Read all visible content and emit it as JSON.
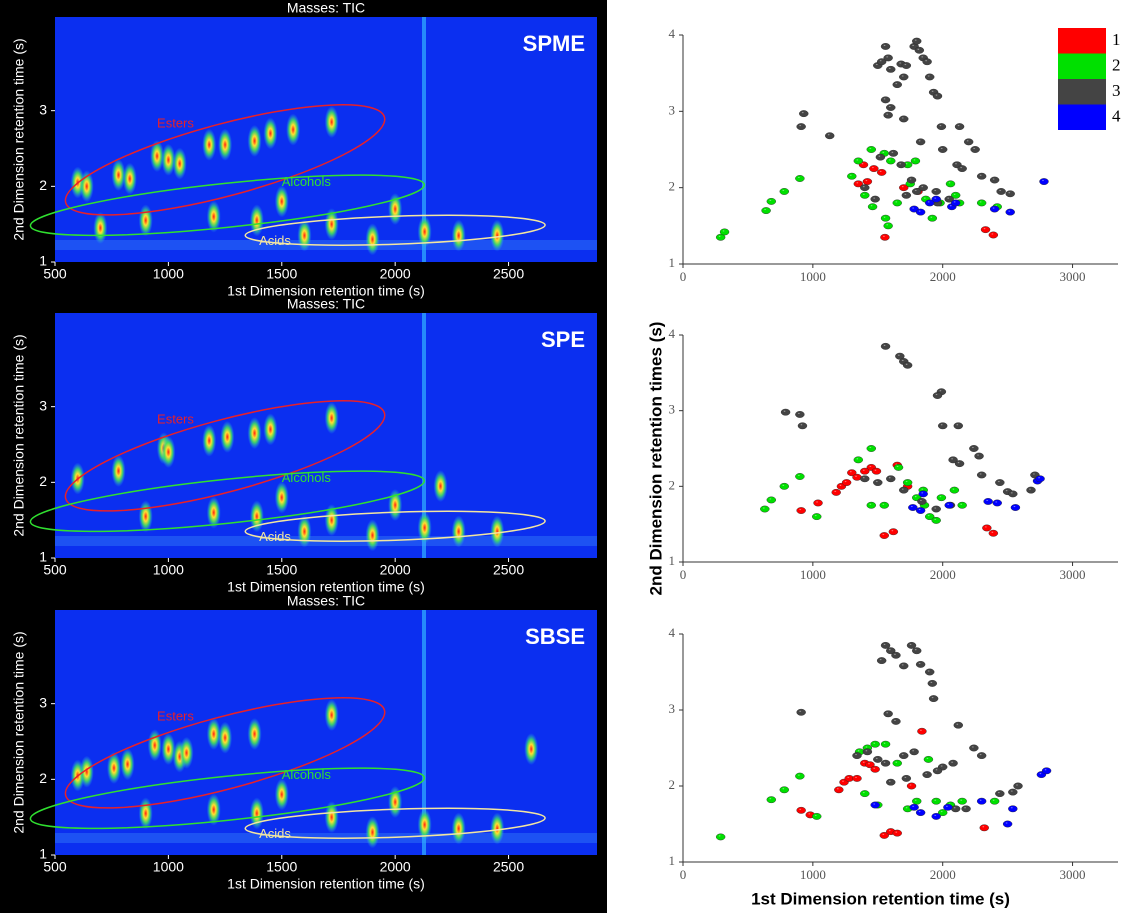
{
  "chart_data": [
    {
      "type": "heatmap",
      "title": "Masses:  TIC",
      "label": "SPME",
      "x_label": "1st Dimension retention time (s)",
      "y_label": "2nd Dimension retention time (s)",
      "xlim": [
        500,
        2890
      ],
      "xticks": [
        500,
        1000,
        1500,
        2000,
        2500
      ],
      "ylim": [
        1,
        4
      ],
      "yticks": [
        1,
        2,
        3
      ],
      "regions": [
        {
          "name": "Esters",
          "color": "#e8202a"
        },
        {
          "name": "Alcohols",
          "color": "#30e030"
        },
        {
          "name": "Acids",
          "color": "#f3e6a0"
        }
      ],
      "peaks": {
        "x": [
          600,
          640,
          780,
          830,
          950,
          1000,
          1050,
          1180,
          1250,
          1380,
          1450,
          1550,
          1720,
          900,
          1200,
          1390,
          1720,
          2130,
          1900,
          2280,
          1600,
          2450,
          700,
          1500,
          2000
        ],
        "y": [
          2.05,
          2.0,
          2.15,
          2.1,
          2.4,
          2.35,
          2.3,
          2.55,
          2.55,
          2.6,
          2.7,
          2.75,
          2.85,
          1.55,
          1.6,
          1.55,
          1.5,
          1.4,
          1.3,
          1.35,
          1.35,
          1.35,
          1.45,
          1.8,
          1.7
        ]
      }
    },
    {
      "type": "heatmap",
      "title": "Masses:  TIC",
      "label": "SPE",
      "x_label": "1st Dimension retention time (s)",
      "y_label": "2nd Dimension retention time (s)",
      "xlim": [
        500,
        2890
      ],
      "xticks": [
        500,
        1000,
        1500,
        2000,
        2500
      ],
      "ylim": [
        1,
        4
      ],
      "yticks": [
        1,
        2,
        3
      ],
      "regions": [
        {
          "name": "Esters",
          "color": "#e8202a"
        },
        {
          "name": "Alcohols",
          "color": "#30e030"
        },
        {
          "name": "Acids",
          "color": "#f3e6a0"
        }
      ],
      "peaks": {
        "x": [
          600,
          780,
          980,
          1000,
          1180,
          1260,
          1380,
          1450,
          1720,
          900,
          1200,
          1390,
          1720,
          2130,
          1900,
          2280,
          1600,
          2450,
          1500,
          2000,
          2200
        ],
        "y": [
          2.05,
          2.15,
          2.45,
          2.4,
          2.55,
          2.6,
          2.65,
          2.7,
          2.85,
          1.55,
          1.6,
          1.55,
          1.5,
          1.4,
          1.3,
          1.35,
          1.35,
          1.35,
          1.8,
          1.7,
          1.95
        ]
      }
    },
    {
      "type": "heatmap",
      "title": "Masses:  TIC",
      "label": "SBSE",
      "x_label": "1st Dimension retention time (s)",
      "y_label": "2nd Dimension retention time (s)",
      "xlim": [
        500,
        2890
      ],
      "xticks": [
        500,
        1000,
        1500,
        2000,
        2500
      ],
      "ylim": [
        1,
        4
      ],
      "yticks": [
        1,
        2,
        3
      ],
      "regions": [
        {
          "name": "Esters",
          "color": "#e8202a"
        },
        {
          "name": "Alcohols",
          "color": "#30e030"
        },
        {
          "name": "Acids",
          "color": "#f3e6a0"
        }
      ],
      "peaks": {
        "x": [
          600,
          640,
          760,
          820,
          940,
          1000,
          1050,
          1080,
          1200,
          1250,
          1380,
          1720,
          900,
          1200,
          1390,
          1720,
          2130,
          1900,
          2280,
          2450,
          2600,
          1500,
          2000
        ],
        "y": [
          2.05,
          2.1,
          2.15,
          2.2,
          2.45,
          2.4,
          2.3,
          2.35,
          2.6,
          2.55,
          2.6,
          2.85,
          1.55,
          1.6,
          1.55,
          1.5,
          1.4,
          1.3,
          1.35,
          1.35,
          2.4,
          1.8,
          1.7
        ]
      }
    },
    {
      "type": "scatter",
      "legend": "upper right",
      "xlim": [
        0,
        3350
      ],
      "xticks": [
        0,
        1000,
        2000,
        3000
      ],
      "ylim": [
        1,
        4
      ],
      "yticks": [
        1,
        2,
        3,
        4
      ],
      "series": [
        {
          "name": "1",
          "color": "#ff0000",
          "x": [
            1470,
            1530,
            1350,
            1420,
            1555,
            1700,
            1810,
            2330,
            2390,
            1390
          ],
          "y": [
            2.25,
            2.2,
            2.05,
            2.08,
            1.35,
            2.0,
            1.95,
            1.45,
            1.38,
            2.3
          ]
        },
        {
          "name": "2",
          "color": "#00e000",
          "x": [
            290,
            320,
            640,
            680,
            780,
            900,
            1300,
            1350,
            1450,
            1550,
            1600,
            1400,
            1460,
            1560,
            1580,
            1730,
            1790,
            1870,
            1920,
            1980,
            2060,
            2100,
            2130,
            2300,
            1650,
            1750,
            2420
          ],
          "y": [
            1.35,
            1.42,
            1.7,
            1.82,
            1.95,
            2.12,
            2.15,
            2.35,
            2.5,
            2.45,
            2.35,
            1.9,
            1.75,
            1.6,
            1.5,
            2.3,
            2.35,
            1.85,
            1.6,
            1.8,
            2.05,
            1.9,
            1.8,
            1.8,
            1.8,
            2.05,
            1.75
          ]
        },
        {
          "name": "3",
          "color": "#444444",
          "x": [
            910,
            930,
            1130,
            1500,
            1530,
            1560,
            1580,
            1600,
            1650,
            1680,
            1700,
            1720,
            1780,
            1800,
            1820,
            1850,
            1880,
            1900,
            1930,
            1960,
            1560,
            1600,
            1580,
            1700,
            1520,
            1620,
            1680,
            1830,
            1990,
            2130,
            2000,
            2200,
            2250,
            2110,
            2150,
            2300,
            2400,
            2450,
            2520,
            1400,
            1480,
            1720,
            1800,
            1850,
            1950,
            2050,
            1960,
            1760
          ],
          "y": [
            2.8,
            2.97,
            2.68,
            3.6,
            3.65,
            3.85,
            3.7,
            3.55,
            3.35,
            3.62,
            3.45,
            3.6,
            3.85,
            3.92,
            3.8,
            3.7,
            3.65,
            3.45,
            3.25,
            3.2,
            3.15,
            3.05,
            2.95,
            2.9,
            2.4,
            2.45,
            2.3,
            2.6,
            2.8,
            2.8,
            2.5,
            2.6,
            2.5,
            2.3,
            2.25,
            2.15,
            2.1,
            1.95,
            1.92,
            2.0,
            1.85,
            1.9,
            1.95,
            2.0,
            1.95,
            1.85,
            1.8,
            2.1
          ]
        },
        {
          "name": "4",
          "color": "#0000ff",
          "x": [
            1780,
            1830,
            1900,
            1950,
            2070,
            2400,
            2520,
            2780,
            2100
          ],
          "y": [
            1.72,
            1.68,
            1.8,
            1.85,
            1.75,
            1.72,
            1.68,
            2.08,
            1.8
          ]
        }
      ]
    },
    {
      "type": "scatter",
      "y_label": "2nd Dimension retention times (s)",
      "xlim": [
        0,
        3350
      ],
      "xticks": [
        0,
        1000,
        2000,
        3000
      ],
      "ylim": [
        1,
        4
      ],
      "yticks": [
        1,
        2,
        3,
        4
      ],
      "series": [
        {
          "name": "1",
          "color": "#ff0000",
          "x": [
            910,
            1040,
            1180,
            1220,
            1260,
            1300,
            1340,
            1450,
            1490,
            1650,
            1730,
            1550,
            1620,
            2340,
            2390,
            1400
          ],
          "y": [
            1.68,
            1.78,
            1.92,
            2.0,
            2.05,
            2.18,
            2.12,
            2.25,
            2.2,
            2.28,
            2.0,
            1.35,
            1.4,
            1.45,
            1.38,
            2.2
          ]
        },
        {
          "name": "2",
          "color": "#00e000",
          "x": [
            630,
            680,
            780,
            900,
            1030,
            1350,
            1450,
            1450,
            1550,
            1660,
            1730,
            1800,
            1860,
            1900,
            1950,
            1990,
            2090,
            2150,
            1850
          ],
          "y": [
            1.7,
            1.82,
            2.0,
            2.13,
            1.6,
            2.35,
            2.5,
            1.75,
            1.75,
            2.25,
            2.05,
            1.85,
            1.75,
            1.6,
            1.55,
            1.85,
            1.95,
            1.75,
            1.95
          ]
        },
        {
          "name": "3",
          "color": "#444444",
          "x": [
            790,
            900,
            920,
            1560,
            1670,
            1700,
            1730,
            1990,
            1960,
            2000,
            2120,
            2080,
            2130,
            2240,
            2280,
            2300,
            2440,
            2500,
            2540,
            2710,
            2680,
            1500,
            1600,
            1700,
            1840,
            1950,
            2060,
            1400
          ],
          "y": [
            2.98,
            2.95,
            2.8,
            3.85,
            3.72,
            3.65,
            3.6,
            3.25,
            3.2,
            2.8,
            2.8,
            2.35,
            2.3,
            2.5,
            2.4,
            2.15,
            2.05,
            1.93,
            1.9,
            2.15,
            1.95,
            2.05,
            2.1,
            1.95,
            1.8,
            1.7,
            1.75,
            2.1
          ]
        },
        {
          "name": "4",
          "color": "#0000ff",
          "x": [
            1770,
            1830,
            1850,
            2050,
            2350,
            2420,
            2560,
            2730,
            2750
          ],
          "y": [
            1.72,
            1.68,
            1.9,
            1.75,
            1.8,
            1.78,
            1.72,
            2.07,
            2.1
          ]
        }
      ]
    },
    {
      "type": "scatter",
      "x_label": "1st Dimension retention time (s)",
      "xlim": [
        0,
        3350
      ],
      "xticks": [
        0,
        1000,
        2000,
        3000
      ],
      "ylim": [
        1,
        4
      ],
      "yticks": [
        1,
        2,
        3,
        4
      ],
      "series": [
        {
          "name": "1",
          "color": "#ff0000",
          "x": [
            910,
            980,
            1200,
            1240,
            1280,
            1340,
            1400,
            1440,
            1480,
            1550,
            1600,
            1650,
            1840,
            2320,
            1760
          ],
          "y": [
            1.68,
            1.62,
            1.95,
            2.05,
            2.1,
            2.1,
            2.3,
            2.28,
            2.22,
            1.35,
            1.4,
            1.38,
            2.72,
            1.45,
            2.0
          ]
        },
        {
          "name": "2",
          "color": "#00e000",
          "x": [
            290,
            680,
            780,
            900,
            1030,
            1360,
            1420,
            1480,
            1560,
            1650,
            1400,
            1500,
            1730,
            1800,
            1890,
            1950,
            2000,
            2060,
            2150,
            2400
          ],
          "y": [
            1.33,
            1.82,
            1.95,
            2.13,
            1.6,
            2.45,
            2.5,
            2.55,
            2.55,
            2.3,
            1.9,
            1.75,
            1.7,
            1.8,
            2.35,
            1.8,
            1.65,
            1.75,
            1.8,
            1.8
          ]
        },
        {
          "name": "3",
          "color": "#444444",
          "x": [
            910,
            1530,
            1560,
            1600,
            1640,
            1700,
            1760,
            1800,
            1830,
            1900,
            1920,
            1930,
            1580,
            1640,
            2120,
            1340,
            1420,
            1500,
            1560,
            1700,
            1780,
            2000,
            2080,
            2240,
            2300,
            2440,
            2540,
            2580,
            1600,
            1720,
            1880,
            1960,
            2100,
            2180
          ],
          "y": [
            2.97,
            3.65,
            3.85,
            3.78,
            3.72,
            3.58,
            3.85,
            3.78,
            3.6,
            3.5,
            3.35,
            3.15,
            2.95,
            2.85,
            2.8,
            2.4,
            2.45,
            2.35,
            2.3,
            2.4,
            2.45,
            2.25,
            2.3,
            2.5,
            2.4,
            1.9,
            1.92,
            2.0,
            2.05,
            2.1,
            2.15,
            2.2,
            1.7,
            1.7
          ]
        },
        {
          "name": "4",
          "color": "#0000ff",
          "x": [
            1480,
            1780,
            1830,
            1950,
            2040,
            2300,
            2500,
            2540,
            2760,
            2800
          ],
          "y": [
            1.75,
            1.72,
            1.65,
            1.6,
            1.72,
            1.8,
            1.5,
            1.7,
            2.15,
            2.2
          ]
        }
      ]
    }
  ]
}
